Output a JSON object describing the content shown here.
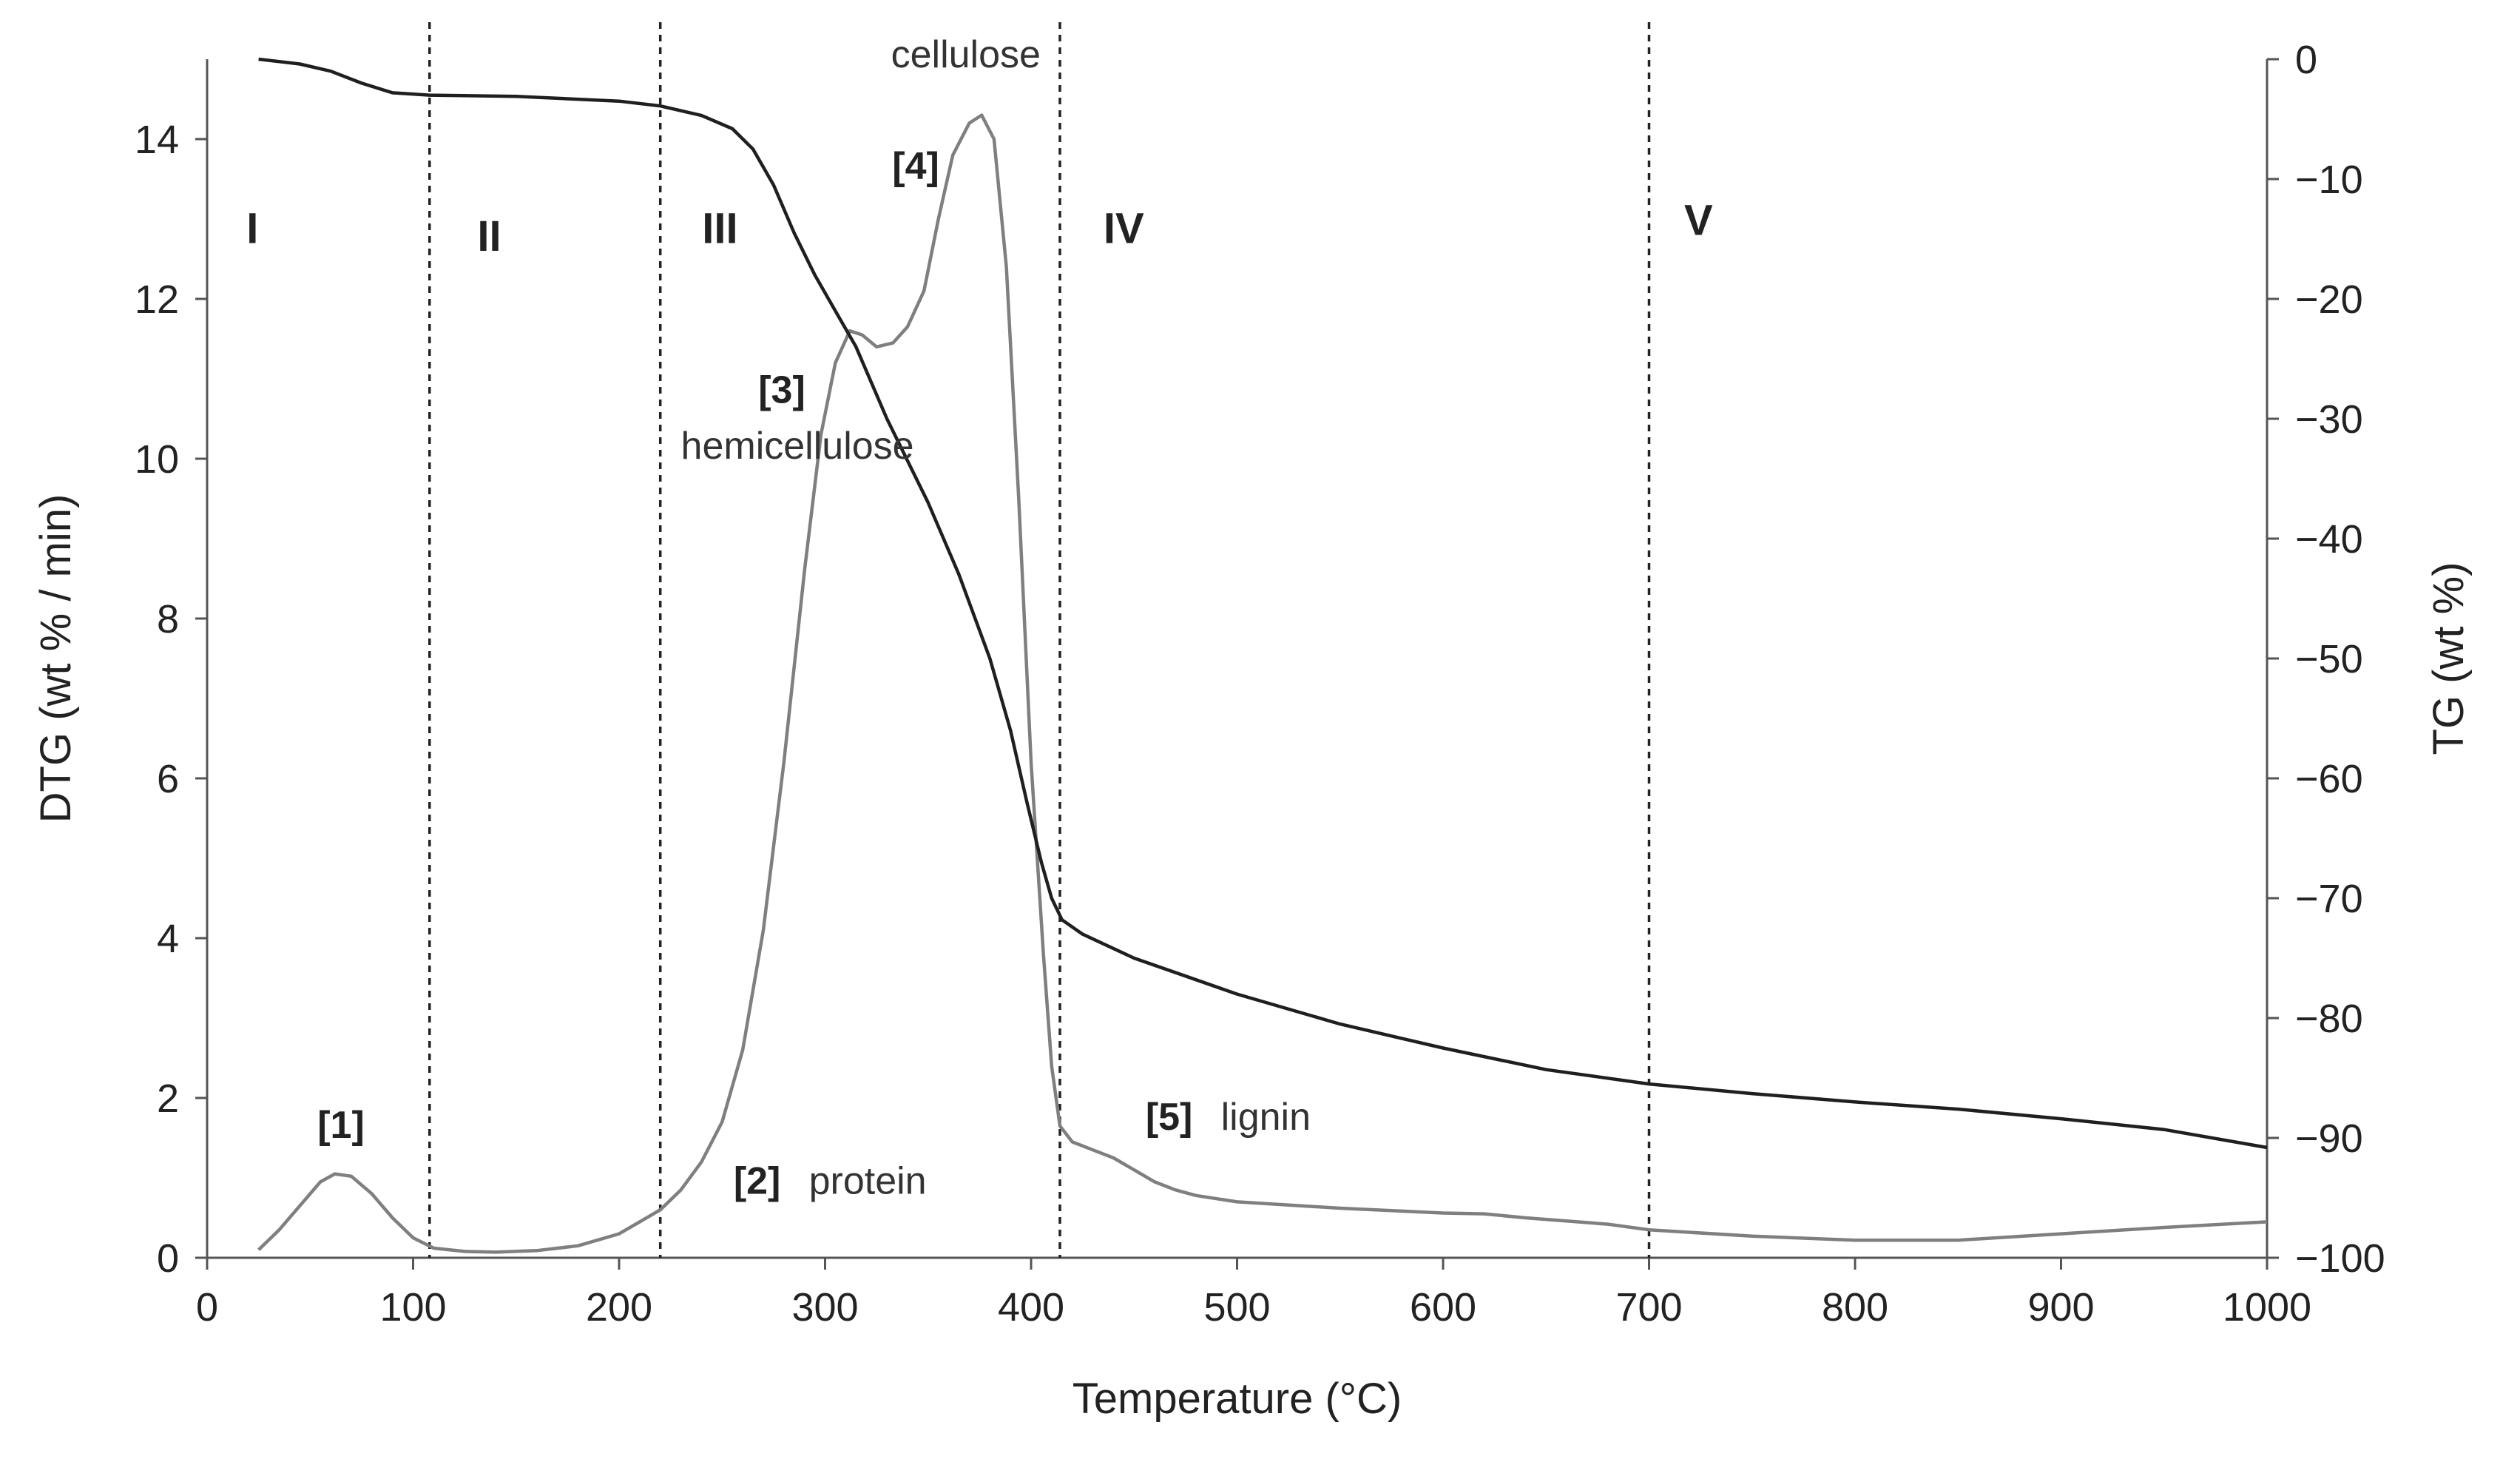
{
  "chart_data": {
    "type": "line",
    "title": "",
    "xlabel": "Temperature (°C)",
    "ylabel_left": "DTG (wt % / min)",
    "ylabel_right": "TG (wt %)",
    "xlim": [
      0,
      1000
    ],
    "ylim_left": [
      0,
      15
    ],
    "ylim_right": [
      -100,
      0
    ],
    "x_ticks": [
      0,
      100,
      200,
      300,
      400,
      500,
      600,
      700,
      800,
      900,
      1000
    ],
    "y_left_ticks": [
      0,
      2,
      4,
      6,
      8,
      10,
      12,
      14
    ],
    "y_right_ticks": [
      "0",
      "−10",
      "−20",
      "−30",
      "−40",
      "−50",
      "−60",
      "−70",
      "−80",
      "−90",
      "−100"
    ],
    "grid": false,
    "dividers": [
      108,
      220,
      414,
      700
    ],
    "zones": [
      {
        "label": "I",
        "x": 22,
        "y": 12.7
      },
      {
        "label": "II",
        "x": 137,
        "y": 12.6
      },
      {
        "label": "III",
        "x": 249,
        "y": 12.7
      },
      {
        "label": "IV",
        "x": 445,
        "y": 12.7
      },
      {
        "label": "V",
        "x": 724,
        "y": 12.8
      }
    ],
    "annotations": [
      {
        "num": "[1]",
        "text": "",
        "x": 65,
        "y": 1.5
      },
      {
        "num": "[2]",
        "text": "protein",
        "x": 267,
        "y": 0.8
      },
      {
        "num": "[3]",
        "text": "hemicellulose",
        "x": 279,
        "y": 10.7,
        "text_x": 230,
        "text_y": 10.0
      },
      {
        "num": "[4]",
        "text": "cellulose",
        "x": 344,
        "y": 13.5,
        "text_x": 332,
        "text_y": 14.9
      },
      {
        "num": "[5]",
        "text": "lignin",
        "x": 467,
        "y": 1.6
      }
    ],
    "series": [
      {
        "name": "DTG",
        "axis": "left",
        "color": "#7f7f7f",
        "points": [
          [
            25,
            0.1
          ],
          [
            35,
            0.35
          ],
          [
            45,
            0.65
          ],
          [
            55,
            0.95
          ],
          [
            62,
            1.05
          ],
          [
            70,
            1.02
          ],
          [
            80,
            0.8
          ],
          [
            90,
            0.5
          ],
          [
            100,
            0.25
          ],
          [
            110,
            0.12
          ],
          [
            125,
            0.08
          ],
          [
            140,
            0.07
          ],
          [
            160,
            0.09
          ],
          [
            180,
            0.15
          ],
          [
            200,
            0.3
          ],
          [
            210,
            0.45
          ],
          [
            220,
            0.6
          ],
          [
            230,
            0.85
          ],
          [
            240,
            1.2
          ],
          [
            250,
            1.7
          ],
          [
            260,
            2.6
          ],
          [
            270,
            4.1
          ],
          [
            280,
            6.2
          ],
          [
            290,
            8.6
          ],
          [
            298,
            10.3
          ],
          [
            305,
            11.2
          ],
          [
            312,
            11.6
          ],
          [
            318,
            11.55
          ],
          [
            325,
            11.4
          ],
          [
            333,
            11.45
          ],
          [
            340,
            11.65
          ],
          [
            348,
            12.1
          ],
          [
            355,
            13.0
          ],
          [
            362,
            13.8
          ],
          [
            370,
            14.2
          ],
          [
            376,
            14.3
          ],
          [
            382,
            14.0
          ],
          [
            388,
            12.4
          ],
          [
            394,
            9.5
          ],
          [
            400,
            6.2
          ],
          [
            406,
            3.8
          ],
          [
            410,
            2.4
          ],
          [
            414,
            1.65
          ],
          [
            420,
            1.45
          ],
          [
            430,
            1.35
          ],
          [
            440,
            1.25
          ],
          [
            450,
            1.1
          ],
          [
            460,
            0.95
          ],
          [
            470,
            0.85
          ],
          [
            480,
            0.78
          ],
          [
            500,
            0.7
          ],
          [
            550,
            0.62
          ],
          [
            600,
            0.56
          ],
          [
            620,
            0.55
          ],
          [
            640,
            0.5
          ],
          [
            680,
            0.42
          ],
          [
            700,
            0.35
          ],
          [
            750,
            0.27
          ],
          [
            800,
            0.22
          ],
          [
            850,
            0.22
          ],
          [
            900,
            0.3
          ],
          [
            950,
            0.38
          ],
          [
            1000,
            0.45
          ]
        ]
      },
      {
        "name": "TG",
        "axis": "right",
        "color": "#1f1f1f",
        "points": [
          [
            25,
            0
          ],
          [
            45,
            -0.4
          ],
          [
            60,
            -1
          ],
          [
            75,
            -2
          ],
          [
            90,
            -2.8
          ],
          [
            108,
            -3
          ],
          [
            150,
            -3.1
          ],
          [
            200,
            -3.5
          ],
          [
            220,
            -3.9
          ],
          [
            240,
            -4.7
          ],
          [
            255,
            -5.8
          ],
          [
            265,
            -7.5
          ],
          [
            275,
            -10.5
          ],
          [
            285,
            -14.5
          ],
          [
            295,
            -18
          ],
          [
            305,
            -21
          ],
          [
            315,
            -24
          ],
          [
            330,
            -30
          ],
          [
            350,
            -37
          ],
          [
            365,
            -43
          ],
          [
            380,
            -50
          ],
          [
            390,
            -56
          ],
          [
            398,
            -62
          ],
          [
            405,
            -67
          ],
          [
            410,
            -70
          ],
          [
            415,
            -71.8
          ],
          [
            425,
            -73
          ],
          [
            450,
            -75
          ],
          [
            500,
            -78
          ],
          [
            550,
            -80.5
          ],
          [
            600,
            -82.5
          ],
          [
            650,
            -84.3
          ],
          [
            700,
            -85.5
          ],
          [
            750,
            -86.3
          ],
          [
            800,
            -87
          ],
          [
            850,
            -87.6
          ],
          [
            900,
            -88.4
          ],
          [
            950,
            -89.3
          ],
          [
            1000,
            -90.8
          ]
        ]
      }
    ]
  }
}
